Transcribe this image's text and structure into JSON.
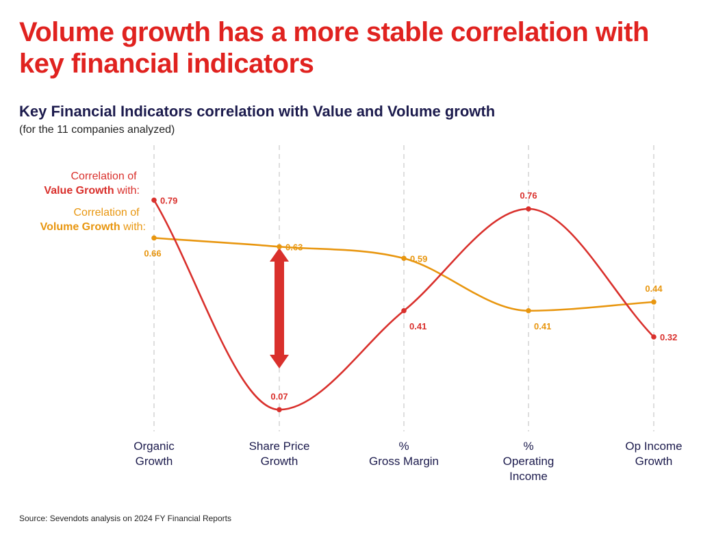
{
  "page": {
    "headline": "Volume growth has a more stable correlation with key financial indicators",
    "subtitle": "Key Financial Indicators correlation with Value and Volume growth",
    "note": "(for the 11 companies analyzed)",
    "source": "Sevendots analysis on 2024 FY Financial Reports"
  },
  "colors": {
    "value_series": "#d9302c",
    "volume_series": "#e8960f",
    "headline": "#e0221f",
    "text_dark": "#1c1b4d",
    "gridline": "#c8c8c8"
  },
  "legend": {
    "value": {
      "line1": "Correlation of",
      "bold": "Value Growth",
      "rest": " with:"
    },
    "volume": {
      "line1": "Correlation of",
      "bold": "Volume Growth",
      "rest": " with:"
    }
  },
  "chart_data": {
    "type": "line",
    "title": "Key Financial Indicators correlation with Value and Volume growth",
    "categories": [
      [
        "Organic",
        "Growth"
      ],
      [
        "Share Price",
        "Growth"
      ],
      [
        "%",
        "Gross Margin"
      ],
      [
        "%",
        "Operating",
        "Income"
      ],
      [
        "Op Income",
        "Growth"
      ]
    ],
    "series": [
      {
        "name": "Correlation of Value Growth with:",
        "key": "value",
        "values": [
          0.79,
          0.07,
          0.41,
          0.76,
          0.32
        ],
        "label_pos": [
          "right",
          "above",
          "below",
          "above",
          "right"
        ]
      },
      {
        "name": "Correlation of Volume Growth with:",
        "key": "volume",
        "values": [
          0.66,
          0.63,
          0.59,
          0.41,
          0.44
        ],
        "label_pos": [
          "below",
          "right",
          "right",
          "below",
          "above"
        ]
      }
    ],
    "ylim": [
      0,
      0.9
    ],
    "smooth": true,
    "grid": "vertical dashed",
    "annotation": "double-headed arrow between series at Share Price Growth"
  }
}
